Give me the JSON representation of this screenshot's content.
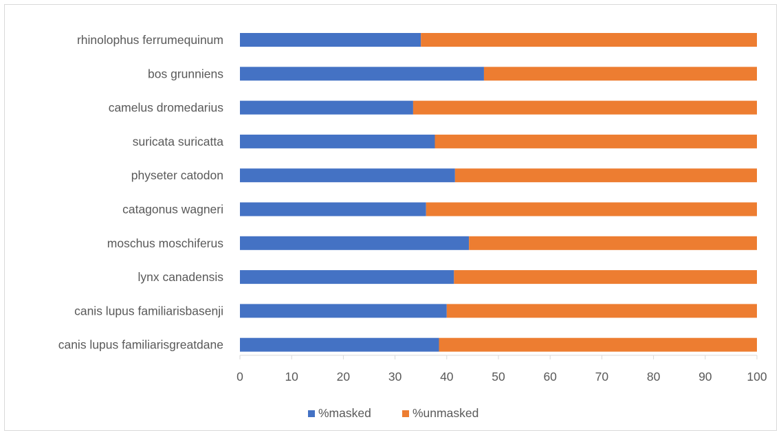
{
  "chart_data": {
    "type": "bar",
    "orientation": "horizontal",
    "stacked": true,
    "title": "",
    "xlabel": "",
    "ylabel": "",
    "xlim": [
      0,
      100
    ],
    "x_ticks": [
      0,
      10,
      20,
      30,
      40,
      50,
      60,
      70,
      80,
      90,
      100
    ],
    "grid": false,
    "legend_position": "bottom",
    "categories": [
      "rhinolophus ferrumequinum",
      "bos grunniens",
      "camelus dromedarius",
      "suricata suricatta",
      "physeter catodon",
      "catagonus wagneri",
      "moschus moschiferus",
      "lynx canadensis",
      "canis lupus familiarisbasenji",
      "canis lupus familiarisgreatdane"
    ],
    "series": [
      {
        "name": "%masked",
        "color": "#4472c4",
        "values": [
          35,
          47.2,
          33.5,
          37.7,
          41.6,
          36,
          44.3,
          41.4,
          40,
          38.5
        ]
      },
      {
        "name": "%unmasked",
        "color": "#ed7d31",
        "values": [
          65,
          52.8,
          66.5,
          62.3,
          58.4,
          64,
          55.7,
          58.6,
          60,
          61.5
        ]
      }
    ]
  }
}
